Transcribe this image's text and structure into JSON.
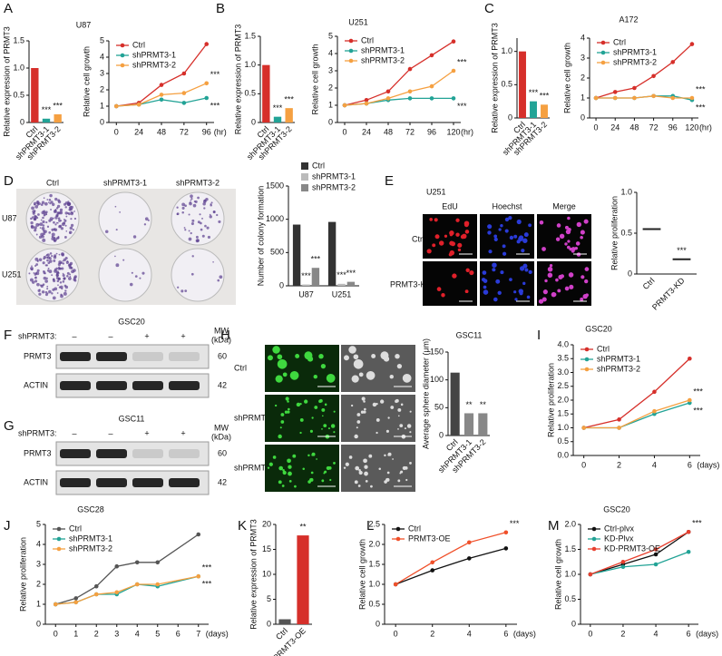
{
  "panel_labels": [
    "A",
    "B",
    "C",
    "D",
    "E",
    "F",
    "G",
    "H",
    "I",
    "J",
    "K",
    "L",
    "M"
  ],
  "chart_data": [
    {
      "type": "bar",
      "title": "U87",
      "ylabel": "Relative expression of PRMT3",
      "categories": [
        "Ctrl",
        "shPRMT3-1",
        "shPRMT3-2"
      ],
      "values": [
        1.0,
        0.07,
        0.15
      ],
      "colors": [
        "#d62f2a",
        "#22a396",
        "#f5a041"
      ],
      "ylim": [
        0,
        1.5
      ],
      "yticks": [
        0,
        0.5,
        {
          "value": 1,
          "label": "1.0"
        },
        1.5
      ],
      "annotations": [
        "***",
        "***"
      ]
    },
    {
      "type": "line",
      "ylabel": "Relative cell growth",
      "xlabel": "(hr)",
      "x": [
        0,
        24,
        48,
        72,
        96
      ],
      "xlim": [
        -8,
        104
      ],
      "xticks": [
        0,
        24,
        48,
        72,
        96
      ],
      "ylim": [
        0,
        5
      ],
      "yticks": [
        0,
        1,
        2,
        3,
        4,
        5
      ],
      "legend": true,
      "series": [
        {
          "name": "Ctrl",
          "color": "#d62f2a",
          "values": [
            1,
            1.2,
            2.3,
            3.0,
            4.8
          ]
        },
        {
          "name": "shPRMT3-1",
          "color": "#22a396",
          "values": [
            1,
            1.1,
            1.4,
            1.2,
            1.5
          ]
        },
        {
          "name": "shPRMT3-2",
          "color": "#f5a041",
          "values": [
            1,
            1.1,
            1.7,
            1.8,
            2.4
          ]
        }
      ],
      "annotations": [
        "***",
        "***"
      ]
    },
    {
      "type": "bar",
      "title": "U251",
      "ylabel": "Relative expression of PRMT3",
      "categories": [
        "Ctrl",
        "shPRMT3-1",
        "shPRMT3-2"
      ],
      "values": [
        1.0,
        0.1,
        0.25
      ],
      "colors": [
        "#d62f2a",
        "#22a396",
        "#f5a041"
      ],
      "ylim": [
        0,
        1.5
      ],
      "yticks": [
        0,
        0.5,
        {
          "value": 1,
          "label": "1.0"
        },
        1.5
      ],
      "annotations": [
        "***",
        "***"
      ]
    },
    {
      "type": "line",
      "ylabel": "Relative cell growth",
      "xlabel": "(hr)",
      "x": [
        0,
        24,
        48,
        72,
        96,
        120
      ],
      "xlim": [
        -8,
        128
      ],
      "xticks": [
        0,
        24,
        48,
        72,
        96,
        120
      ],
      "ylim": [
        0,
        5
      ],
      "yticks": [
        0,
        1,
        2,
        3,
        4,
        5
      ],
      "legend": true,
      "series": [
        {
          "name": "Ctrl",
          "color": "#d62f2a",
          "values": [
            1,
            1.3,
            1.8,
            3.1,
            3.9,
            4.7
          ]
        },
        {
          "name": "shPRMT3-1",
          "color": "#22a396",
          "values": [
            1,
            1.1,
            1.3,
            1.4,
            1.4,
            1.4
          ]
        },
        {
          "name": "shPRMT3-2",
          "color": "#f5a041",
          "values": [
            1,
            1.1,
            1.4,
            1.8,
            2.1,
            3.0
          ]
        }
      ],
      "annotations": [
        "***",
        "***"
      ]
    },
    {
      "type": "bar",
      "title": "A172",
      "ylabel": "Relative expression of PRMT3",
      "categories": [
        "Ctrl",
        "shPRMT3-1",
        "shPRMT3-2"
      ],
      "values": [
        1.0,
        0.25,
        0.2
      ],
      "colors": [
        "#d62f2a",
        "#22a396",
        "#f5a041"
      ],
      "ylim": [
        0,
        1.2
      ],
      "yticks": [
        0,
        0.5,
        {
          "value": 1,
          "label": "1.0"
        }
      ],
      "annotations": [
        "***",
        "***"
      ]
    },
    {
      "type": "line",
      "ylabel": "Relative cell growth",
      "xlabel": "(hr)",
      "x": [
        0,
        24,
        48,
        72,
        96,
        120
      ],
      "xlim": [
        -8,
        128
      ],
      "xticks": [
        0,
        24,
        48,
        72,
        96,
        120
      ],
      "ylim": [
        0,
        4
      ],
      "yticks": [
        0,
        1,
        2,
        3,
        4
      ],
      "legend": true,
      "series": [
        {
          "name": "Ctrl",
          "color": "#d62f2a",
          "values": [
            1,
            1.3,
            1.5,
            2.1,
            2.8,
            3.7
          ]
        },
        {
          "name": "shPRMT3-1",
          "color": "#22a396",
          "values": [
            1,
            1,
            1,
            1.1,
            1.1,
            0.9
          ]
        },
        {
          "name": "shPRMT3-2",
          "color": "#f5a041",
          "values": [
            1,
            1,
            1,
            1.1,
            1,
            1
          ]
        }
      ],
      "annotations": [
        "***",
        "***"
      ]
    },
    {
      "type": "bar",
      "ylabel": "Number of colony formation",
      "categories": [
        "U87",
        "U251"
      ],
      "ylim": [
        0,
        1500
      ],
      "yticks": [
        0,
        500,
        1000,
        1500
      ],
      "legend": true,
      "series": [
        {
          "name": "Ctrl",
          "color": "#333333",
          "values": [
            920,
            960
          ]
        },
        {
          "name": "shPRMT3-1",
          "color": "#bbbbbb",
          "values": [
            20,
            30
          ]
        },
        {
          "name": "shPRMT3-2",
          "color": "#888888",
          "values": [
            270,
            60
          ]
        }
      ],
      "annotations": [
        "***",
        "***",
        "***",
        "***"
      ]
    },
    {
      "type": "dot",
      "ylabel": "Relative proliferation",
      "categories": [
        "Ctrl",
        "PRMT3-KD"
      ],
      "values": [
        0.55,
        0.18
      ],
      "colors": [
        "#222222",
        "#222222"
      ],
      "ylim": [
        0,
        1.0
      ],
      "yticks": [
        0,
        0.5,
        {
          "value": 1,
          "label": "1.0"
        }
      ],
      "annotations": [
        "***"
      ]
    },
    {
      "type": "bar",
      "title": "GSC11",
      "ylabel": "Average sphere diameter (μm)",
      "categories": [
        "Ctrl",
        "shPRMT3-1",
        "shPRMT3-2"
      ],
      "values": [
        113,
        40,
        40
      ],
      "colors": [
        "#444444",
        "#888888",
        "#888888"
      ],
      "ylim": [
        0,
        150
      ],
      "yticks": [
        0,
        50,
        100,
        150
      ],
      "annotations": [
        "**",
        "**"
      ]
    },
    {
      "type": "line",
      "title": "GSC20",
      "ylabel": "Relative proliferation",
      "xlabel": "(days)",
      "x": [
        0,
        2,
        4,
        6
      ],
      "xlim": [
        -0.6,
        6.6
      ],
      "xticks": [
        0,
        2,
        4,
        6
      ],
      "ylim": [
        0,
        4
      ],
      "yticks": [
        {
          "value": 0,
          "label": "0.0"
        },
        0.5,
        {
          "value": 1,
          "label": "1.0"
        },
        1.5,
        {
          "value": 2,
          "label": "2.0"
        },
        2.5,
        {
          "value": 3,
          "label": "3.0"
        },
        3.5,
        {
          "value": 4,
          "label": "4.0"
        }
      ],
      "legend": true,
      "series": [
        {
          "name": "Ctrl",
          "color": "#d62f2a",
          "values": [
            1,
            1.3,
            2.3,
            3.5
          ]
        },
        {
          "name": "shPRMT3-1",
          "color": "#22a396",
          "values": [
            1,
            1,
            1.5,
            1.9
          ]
        },
        {
          "name": "shPRMT3-2",
          "color": "#f5a041",
          "values": [
            1,
            1,
            1.6,
            2.0
          ]
        }
      ],
      "annotations": [
        "***",
        "***"
      ]
    },
    {
      "type": "line",
      "title": "GSC28",
      "ylabel": "Relative proliferation",
      "xlabel": "(days)",
      "x": [
        0,
        1,
        2,
        3,
        4,
        5,
        7
      ],
      "xlim": [
        -0.5,
        7.5
      ],
      "xticks": [
        0,
        1,
        2,
        3,
        4,
        5,
        6,
        7
      ],
      "ylim": [
        0,
        5
      ],
      "yticks": [
        0,
        1,
        2,
        3,
        4,
        5
      ],
      "legend": true,
      "series": [
        {
          "name": "Ctrl",
          "color": "#555555",
          "values": [
            1,
            1.3,
            1.9,
            2.9,
            3.1,
            3.1,
            4.5
          ]
        },
        {
          "name": "shPRMT3-1",
          "color": "#22a396",
          "values": [
            1,
            1.1,
            1.5,
            1.5,
            2.0,
            1.9,
            2.4
          ]
        },
        {
          "name": "shPRMT3-2",
          "color": "#f5a041",
          "values": [
            1,
            1.1,
            1.5,
            1.6,
            2.0,
            2.0,
            2.4
          ]
        }
      ],
      "annotations": [
        "***",
        "***"
      ]
    },
    {
      "type": "bar",
      "ylabel": "Relative expression of PRMT3",
      "categories": [
        "Ctrl",
        "PRMT3-OE"
      ],
      "values": [
        1,
        17.8
      ],
      "colors": [
        "#555555",
        "#d62f2a"
      ],
      "ylim": [
        0,
        20
      ],
      "yticks": [
        0,
        5,
        10,
        15,
        20
      ],
      "annotations": [
        "**"
      ]
    },
    {
      "type": "line",
      "ylabel": "Relative cell growth",
      "xlabel": "(days)",
      "x": [
        0,
        2,
        4,
        6
      ],
      "xlim": [
        -0.6,
        6.6
      ],
      "xticks": [
        0,
        2,
        4,
        6
      ],
      "ylim": [
        0,
        2.5
      ],
      "yticks": [
        0,
        0.5,
        {
          "value": 1,
          "label": "1.0"
        },
        1.5,
        {
          "value": 2,
          "label": "2.0"
        },
        2.5
      ],
      "legend": true,
      "series": [
        {
          "name": "Ctrl",
          "color": "#111111",
          "values": [
            1,
            1.35,
            1.65,
            1.9
          ]
        },
        {
          "name": "PRMT3-OE",
          "color": "#f0502a",
          "values": [
            1,
            1.55,
            2.05,
            2.3
          ]
        }
      ],
      "annotations": [
        "***"
      ]
    },
    {
      "type": "line",
      "title": "GSC20",
      "ylabel": "Relative cell growth",
      "xlabel": "(days)",
      "x": [
        0,
        2,
        4,
        6
      ],
      "xlim": [
        -0.6,
        6.6
      ],
      "xticks": [
        0,
        2,
        4,
        6
      ],
      "ylim": [
        0,
        2.0
      ],
      "yticks": [
        0,
        0.5,
        {
          "value": 1,
          "label": "1.0"
        },
        1.5,
        {
          "value": 2,
          "label": "2.0"
        }
      ],
      "legend": true,
      "series": [
        {
          "name": "Ctrl-plvx",
          "color": "#111111",
          "values": [
            1,
            1.2,
            1.4,
            1.85
          ]
        },
        {
          "name": "KD-Plvx",
          "color": "#22a396",
          "values": [
            1,
            1.15,
            1.2,
            1.45
          ]
        },
        {
          "name": "KD-PRMT3-OE",
          "color": "#e8402f",
          "values": [
            1,
            1.25,
            1.5,
            1.85
          ]
        }
      ],
      "annotations": [
        "***"
      ]
    }
  ],
  "colony_images": {
    "columns": [
      "Ctrl",
      "shPRMT3-1",
      "shPRMT3-2"
    ],
    "rows": [
      "U87",
      "U251"
    ]
  },
  "edu_images": {
    "title": "U251",
    "columns": [
      "EdU",
      "Hoechst",
      "Merge"
    ],
    "rows": [
      "Ctrl",
      "PRMT3-KD"
    ]
  },
  "blots": [
    {
      "title": "GSC20",
      "condition": "shPRMT3:",
      "signs": [
        "–",
        "–",
        "+",
        "+"
      ],
      "mw_label": [
        "MW",
        "(kDa)"
      ],
      "rows": [
        {
          "name": "PRMT3",
          "mw": 60
        },
        {
          "name": "ACTIN",
          "mw": 42
        }
      ]
    },
    {
      "title": "GSC11",
      "condition": "shPRMT3:",
      "signs": [
        "–",
        "–",
        "+",
        "+"
      ],
      "mw_label": [
        "MW",
        "(kDa)"
      ],
      "rows": [
        {
          "name": "PRMT3",
          "mw": 60
        },
        {
          "name": "ACTIN",
          "mw": 42
        }
      ]
    }
  ],
  "sphere_images": {
    "rows": [
      "Ctrl",
      "shPRMT3-1",
      "shPRMT3-2"
    ]
  }
}
